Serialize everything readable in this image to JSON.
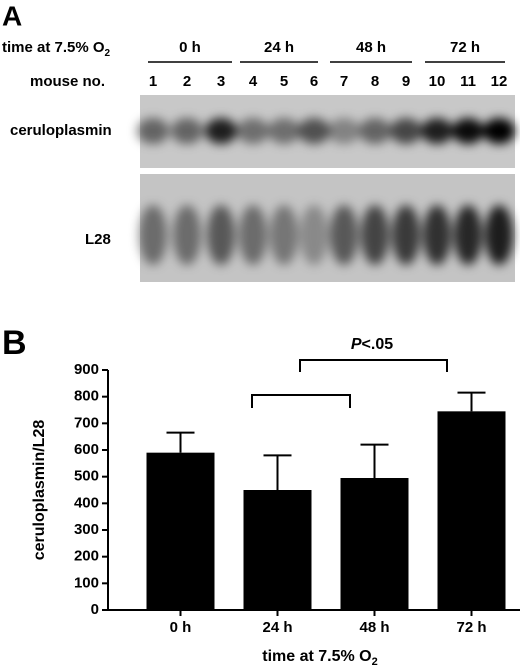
{
  "panel_a": {
    "label": "A",
    "time_label": "time at 7.5% O",
    "time_label_sub": "2",
    "groups": [
      "0 h",
      "24 h",
      "48 h",
      "72 h"
    ],
    "mouse_label": "mouse no.",
    "mice": [
      "1",
      "2",
      "3",
      "4",
      "5",
      "6",
      "7",
      "8",
      "9",
      "10",
      "11",
      "12"
    ],
    "rows": [
      "ceruloplasmin",
      "L28"
    ]
  },
  "chart_data": {
    "type": "bar",
    "panel_label": "B",
    "categories": [
      "0 h",
      "24 h",
      "48 h",
      "72 h"
    ],
    "values": [
      590,
      450,
      495,
      745
    ],
    "errors": [
      75,
      130,
      125,
      70
    ],
    "color": "#000000",
    "ylim": [
      0,
      900
    ],
    "yticks": [
      0,
      100,
      200,
      300,
      400,
      500,
      600,
      700,
      800,
      900
    ],
    "ylabel": "ceruloplasmin/L28",
    "xlabel": "time at 7.5% O",
    "xlabel_sub": "2",
    "annotation": {
      "italic": "P",
      "text": "<.05"
    }
  }
}
